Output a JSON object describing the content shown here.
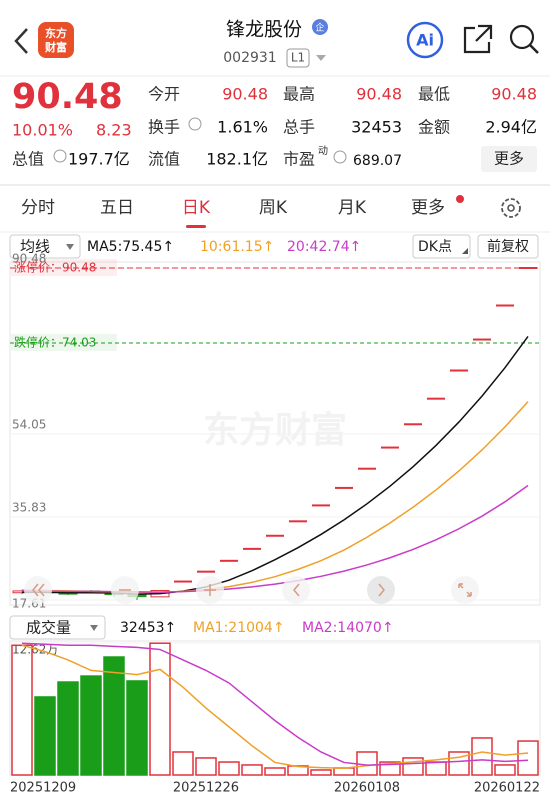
{
  "header": {
    "logo_line1": "东方",
    "logo_line2": "财富",
    "title": "锋龙股份",
    "badge": "企",
    "code": "002931",
    "level": "L1",
    "ai": "Ai"
  },
  "quote": {
    "price": "90.48",
    "change_pct": "10.01%",
    "change": "8.23",
    "stats": [
      {
        "label": "今开",
        "value": "90.48"
      },
      {
        "label": "最高",
        "value": "90.48"
      },
      {
        "label": "最低",
        "value": "90.48"
      },
      {
        "label": "换手",
        "value": "1.61%"
      },
      {
        "label": "总手",
        "value": "32453"
      },
      {
        "label": "金额",
        "value": "2.94亿"
      },
      {
        "label": "总值",
        "value": "197.7亿"
      },
      {
        "label": "流值",
        "value": "182.1亿"
      },
      {
        "label": "市盈",
        "sup": "动",
        "value": "689.07"
      }
    ],
    "more": "更多"
  },
  "tabs": [
    "分时",
    "五日",
    "日K",
    "周K",
    "月K",
    "更多"
  ],
  "kline": {
    "toolbar": {
      "ma": "均线",
      "ma5": "MA5:75.45↑",
      "ma10": "10:61.15↑",
      "ma20": "20:42.74↑",
      "dk": "DK点",
      "adjust": "前复权"
    },
    "watermark": "东方财富",
    "limit_up": {
      "label": "涨停价：90.48",
      "value": 90.48,
      "color": "#e0323c"
    },
    "limit_down": {
      "label": "跌停价：74.03",
      "value": 74.03,
      "color": "#1a9e1a"
    },
    "ylim": [
      17.61,
      90.48
    ],
    "yticks": [
      17.61,
      35.83,
      54.05,
      90.48
    ],
    "up_color": "#e0323c",
    "down_color": "#1a9e1a",
    "dates": [
      "20251209",
      null,
      null,
      null,
      null,
      null,
      null,
      null,
      "20251226",
      null,
      null,
      null,
      null,
      null,
      null,
      "20260108",
      null,
      null,
      null,
      null,
      null,
      null,
      "20260122"
    ],
    "candles": [
      [
        19.2,
        19.9,
        18.9,
        19.6
      ],
      [
        19.6,
        19.7,
        19.0,
        19.2
      ],
      [
        19.2,
        19.3,
        18.7,
        18.9
      ],
      [
        19.6,
        19.8,
        19.1,
        19.3
      ],
      [
        19.2,
        19.3,
        18.3,
        18.8
      ],
      [
        18.8,
        18.9,
        17.61,
        18.34
      ],
      [
        18.3,
        19.69,
        18.2,
        19.69
      ],
      [
        21.66,
        21.66,
        21.66,
        21.66
      ],
      [
        23.83,
        23.83,
        23.83,
        23.83
      ],
      [
        26.21,
        26.21,
        26.21,
        26.21
      ],
      [
        28.83,
        28.83,
        28.83,
        28.83
      ],
      [
        31.71,
        31.71,
        31.71,
        31.71
      ],
      [
        34.88,
        34.88,
        34.88,
        34.88
      ],
      [
        38.37,
        38.37,
        38.37,
        38.37
      ],
      [
        42.21,
        42.21,
        42.21,
        42.21
      ],
      [
        46.43,
        46.43,
        46.43,
        46.43
      ],
      [
        51.07,
        51.07,
        51.07,
        51.07
      ],
      [
        56.18,
        56.18,
        56.18,
        56.18
      ],
      [
        61.8,
        61.8,
        61.8,
        61.8
      ],
      [
        67.98,
        67.98,
        67.98,
        67.98
      ],
      [
        74.78,
        74.78,
        74.78,
        74.78
      ],
      [
        82.25,
        82.25,
        82.25,
        82.25
      ],
      [
        90.48,
        90.48,
        90.48,
        90.48
      ]
    ],
    "ma": [
      {
        "color": "#111111",
        "values": [
          19.3,
          19.3,
          19.2,
          19.2,
          19.16,
          18.91,
          19.01,
          19.56,
          20.46,
          21.95,
          24.04,
          26.45,
          29.09,
          32.0,
          35.2,
          38.72,
          42.59,
          46.85,
          51.54,
          56.69,
          62.36,
          68.6,
          75.45
        ]
      },
      {
        "color": "#f0a028",
        "values": [
          19.8,
          19.7,
          19.6,
          19.5,
          19.4,
          19.3,
          19.3,
          19.5,
          19.9,
          20.55,
          21.48,
          22.73,
          24.33,
          26.23,
          28.57,
          31.38,
          34.52,
          37.97,
          41.77,
          45.95,
          50.54,
          55.6,
          61.15
        ]
      },
      {
        "color": "#c83cc8",
        "values": [
          19.6,
          19.55,
          19.5,
          19.5,
          19.45,
          19.4,
          19.35,
          19.46,
          19.68,
          20.02,
          20.49,
          21.1,
          21.87,
          22.81,
          23.95,
          25.3,
          26.88,
          28.71,
          30.83,
          33.25,
          36.01,
          39.16,
          42.74
        ]
      }
    ]
  },
  "volume": {
    "toolbar": {
      "label": "成交量",
      "latest": "32453↑",
      "ma1": "MA1:21004↑",
      "ma2": "MA2:14070↑"
    },
    "ylim": [
      0,
      126200
    ],
    "yticks": [
      {
        "value": 126200,
        "label": "12.62万"
      }
    ],
    "values": [
      124000,
      74600,
      88900,
      94600,
      112800,
      89900,
      126000,
      22000,
      16300,
      12400,
      9600,
      6700,
      8600,
      4800,
      6700,
      22000,
      12400,
      16300,
      12400,
      22000,
      35400,
      9600,
      32453
    ],
    "ma": [
      {
        "color": "#f0a028",
        "values": [
          124000,
          118000,
          110000,
          100000,
          98000,
          96000,
          101000,
          84000,
          64000,
          46000,
          28000,
          12000,
          8000,
          7000,
          6500,
          9000,
          11000,
          12500,
          14500,
          17000,
          22000,
          19000,
          21004
        ]
      },
      {
        "color": "#c83cc8",
        "values": [
          126000,
          125000,
          124000,
          124000,
          123000,
          122000,
          120000,
          110000,
          100000,
          88000,
          70000,
          52000,
          36000,
          22000,
          12000,
          9500,
          10000,
          11000,
          12000,
          13000,
          14500,
          13000,
          14070
        ]
      }
    ]
  }
}
